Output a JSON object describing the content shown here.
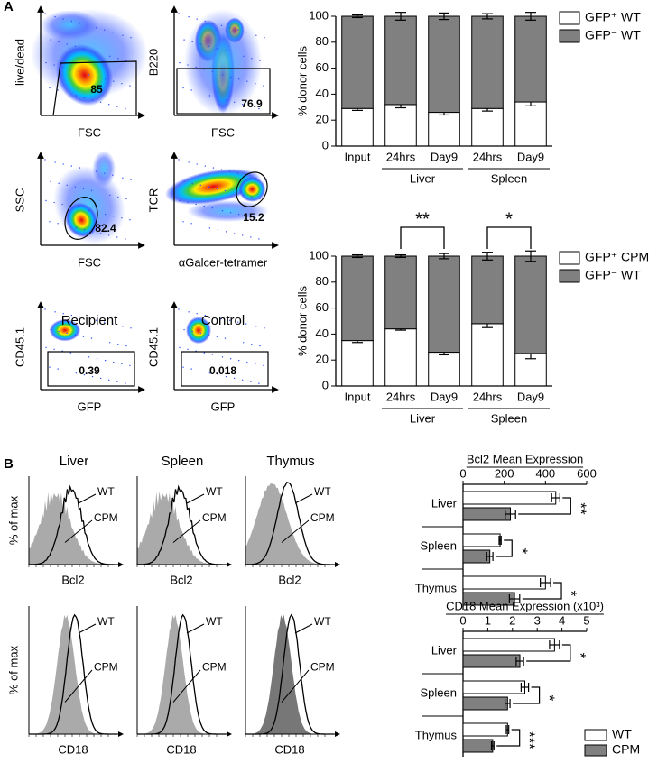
{
  "panel_labels": [
    "A",
    "B"
  ],
  "flow_plots": [
    {
      "y_label": "live/dead",
      "x_label": "FSC",
      "gate_value": "85"
    },
    {
      "y_label": "B220",
      "x_label": "FSC",
      "gate_value": "76.9"
    },
    {
      "y_label": "SSC",
      "x_label": "FSC",
      "gate_value": "82.4"
    },
    {
      "y_label": "TCR",
      "x_label": "αGalcer-tetramer",
      "gate_value": "15.2"
    },
    {
      "title": "Recipient",
      "y_label": "CD45.1",
      "x_label": "GFP",
      "gate_value": "0.39"
    },
    {
      "title": "Control",
      "y_label": "CD45.1",
      "x_label": "GFP",
      "gate_value": "0.018"
    }
  ],
  "histograms": {
    "columns": [
      "Liver",
      "Spleen",
      "Thymus"
    ],
    "y_label": "% of max",
    "rows": [
      {
        "x_label": "Bcl2"
      },
      {
        "x_label": "CD18"
      }
    ],
    "curve_labels": [
      "WT",
      "CPM"
    ]
  },
  "chart_data": [
    {
      "type": "stacked_bar",
      "ylabel": "% donor cells",
      "categories": [
        "Input",
        "24hrs",
        "Day9",
        "24hrs",
        "Day9"
      ],
      "groups": [
        null,
        "Liver",
        "Liver",
        "Spleen",
        "Spleen"
      ],
      "series": [
        {
          "name": "GFP⁺ WT",
          "color": "#ffffff",
          "values": [
            29,
            32,
            26,
            29,
            34
          ],
          "errors": [
            1.5,
            2.5,
            2,
            2,
            3
          ]
        },
        {
          "name": "GFP⁻ WT",
          "color": "#808080",
          "values": [
            71,
            68,
            74,
            71,
            66
          ],
          "errors": [
            1,
            3,
            2.5,
            2,
            3
          ]
        }
      ],
      "ylim": [
        0,
        100
      ],
      "yticks": [
        0,
        20,
        40,
        60,
        80,
        100
      ],
      "legend": "right"
    },
    {
      "type": "stacked_bar",
      "ylabel": "% donor cells",
      "categories": [
        "Input",
        "24hrs",
        "Day9",
        "24hrs",
        "Day9"
      ],
      "groups": [
        null,
        "Liver",
        "Liver",
        "Spleen",
        "Spleen"
      ],
      "series": [
        {
          "name": "GFP⁺ CPM",
          "color": "#ffffff",
          "values": [
            35,
            44,
            26,
            48,
            25
          ],
          "errors": [
            1.5,
            1,
            2,
            3,
            4
          ]
        },
        {
          "name": "GFP⁻ WT",
          "color": "#808080",
          "values": [
            65,
            56,
            74,
            52,
            75
          ],
          "errors": [
            1,
            1,
            2,
            3,
            4
          ]
        }
      ],
      "ylim": [
        0,
        100
      ],
      "yticks": [
        0,
        20,
        40,
        60,
        80,
        100
      ],
      "legend": "right",
      "significance": [
        {
          "label": "**",
          "from": 1,
          "to": 2
        },
        {
          "label": "*",
          "from": 3,
          "to": 4
        }
      ]
    },
    {
      "type": "hbar",
      "title": "Bcl2 Mean Expression",
      "categories": [
        "Liver",
        "Spleen",
        "Thymus"
      ],
      "series": [
        {
          "color": "#ffffff",
          "values": [
            450,
            180,
            400
          ],
          "errors": [
            20,
            5,
            25
          ]
        },
        {
          "color": "#808080",
          "values": [
            230,
            130,
            250
          ],
          "errors": [
            25,
            15,
            25
          ]
        }
      ],
      "xlim": [
        0,
        600
      ],
      "xticks": [
        0,
        200,
        400,
        600
      ],
      "significance": [
        "**",
        "*",
        "*"
      ]
    },
    {
      "type": "hbar",
      "title": "CD18 Mean Expression (x10³)",
      "categories": [
        "Liver",
        "Spleen",
        "Thymus"
      ],
      "series": [
        {
          "name": "WT",
          "color": "#ffffff",
          "values": [
            3.7,
            2.5,
            1.8
          ],
          "errors": [
            0.2,
            0.15,
            0.05
          ]
        },
        {
          "name": "CPM",
          "color": "#808080",
          "values": [
            2.3,
            1.8,
            1.2
          ],
          "errors": [
            0.15,
            0.1,
            0.05
          ]
        }
      ],
      "xlim": [
        0,
        5
      ],
      "xticks": [
        0,
        1,
        2,
        3,
        4,
        5
      ],
      "legend": "bottom-right",
      "significance": [
        "*",
        "*",
        "***"
      ]
    }
  ]
}
